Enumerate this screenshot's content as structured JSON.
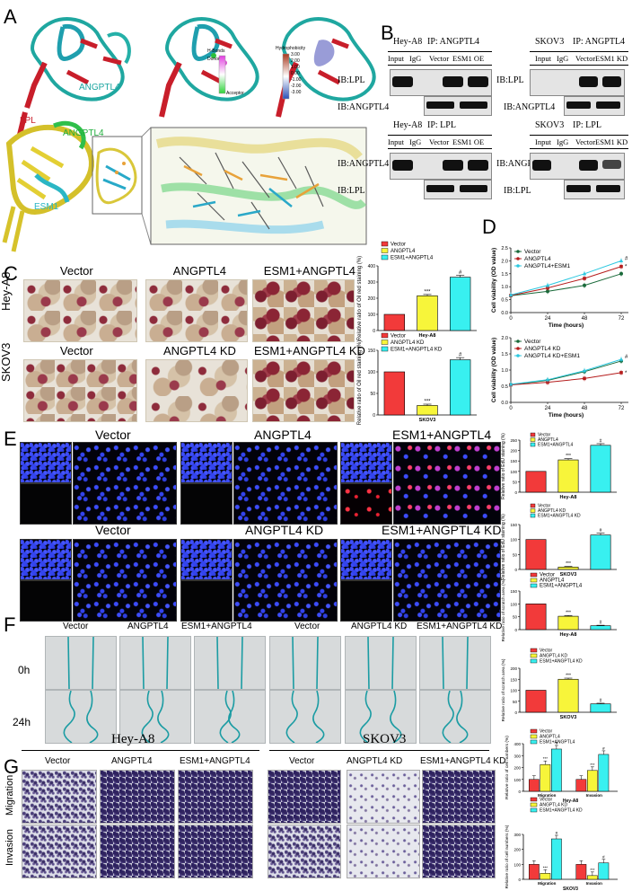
{
  "panel_labels": [
    "A",
    "B",
    "C",
    "D",
    "E",
    "F",
    "G"
  ],
  "panelA": {
    "lpl": "LPL",
    "angptl4": "ANGPTL4",
    "angptl4_2": "ANGPTL4",
    "esm1": "ESM1",
    "hbonds_title": "H-Bonds",
    "hbonds_donor": "Donor",
    "hbonds_acceptor": "Acceptor",
    "hydro_title": "Hydrophobicity",
    "hydro_ticks": [
      "3.00",
      "2.00",
      "1.00",
      "0.00",
      "-1.00",
      "-2.00",
      "-3.00"
    ]
  },
  "panelB": {
    "blots": [
      {
        "cell": "Hey-A8",
        "ip": "IP: ANGPTL4",
        "cols": [
          "Input",
          "IgG",
          "Vector",
          "ESM1 OE"
        ],
        "ib_top": "IB:LPL",
        "ib_bottom": "IB:ANGPTL4"
      },
      {
        "cell": "SKOV3",
        "ip": "IP: ANGPTL4",
        "cols": [
          "Input",
          "IgG",
          "Vector",
          "ESM1 KD"
        ],
        "ib_top": "IB:LPL",
        "ib_bottom": "IB:ANGPTL4"
      },
      {
        "cell": "Hey-A8",
        "ip": "IP: LPL",
        "cols": [
          "Input",
          "IgG",
          "Vector",
          "ESM1 OE"
        ],
        "ib_top": "IB:ANGPTL4",
        "ib_bottom": "IB:LPL"
      },
      {
        "cell": "SKOV3",
        "ip": "IP: LPL",
        "cols": [
          "Input",
          "IgG",
          "Vector",
          "ESM1 KD"
        ],
        "ib_top": "IB:ANGPTL4",
        "ib_bottom": "IB:LPL"
      }
    ]
  },
  "panelC": {
    "top_titles": [
      "Vector",
      "ANGPTL4",
      "ESM1+ANGPTL4"
    ],
    "bottom_titles": [
      "Vector",
      "ANGPTL4 KD",
      "ESM1+ANGPTL4 KD"
    ],
    "row_labels": [
      "Hey-A8",
      "SKOV3"
    ]
  },
  "panelE": {
    "top_titles": [
      "Vector",
      "ANGPTL4",
      "ESM1+ANGPTL4"
    ],
    "bottom_titles": [
      "Vector",
      "ANGPTL4 KD",
      "ESM1+ANGPTL4 KD"
    ]
  },
  "panelF": {
    "titles": [
      "Vector",
      "ANGPTL4",
      "ESM1+ANGPTL4",
      "Vector",
      "ANGPTL4 KD",
      "ESM1+ANGPTL4 KD"
    ],
    "row_labels": [
      "0h",
      "24h"
    ]
  },
  "panelG": {
    "group_left": "Hey-A8",
    "group_right": "SKOV3",
    "titles": [
      "Vector",
      "ANGPTL4",
      "ESM1+ANGPTL4",
      "Vector",
      "ANGPTL4 KD",
      "ESM1+ANGPTL4 KD"
    ],
    "row_labels": [
      "Migration",
      "Invasion"
    ]
  },
  "colors": {
    "red": "#f23a3a",
    "yellow": "#f7f53a",
    "cyan": "#38f0f0",
    "line_dark": "#1a6a3a",
    "line_red": "#b51c1c",
    "line_cyan": "#2cc8e0"
  },
  "chart_data": [
    {
      "id": "c_hey",
      "type": "bar",
      "title": "",
      "xlabel": "Hey-A8",
      "ylabel": "Relative ratio of Oil red staining (%)",
      "ylim": [
        0,
        400
      ],
      "yticks": [
        0,
        100,
        200,
        300,
        400
      ],
      "legend": [
        "Vector",
        "ANGPTL4",
        "ESM1+ANGPTL4"
      ],
      "values": [
        100,
        215,
        330
      ],
      "errors": [
        0,
        8,
        12
      ],
      "sig": [
        "",
        "***",
        "#"
      ]
    },
    {
      "id": "c_skov",
      "type": "bar",
      "title": "",
      "xlabel": "SKOV3",
      "ylabel": "Relative ratio of Oil red staining (%)",
      "ylim": [
        0,
        150
      ],
      "yticks": [
        0,
        50,
        100,
        150
      ],
      "legend": [
        "Vector",
        "ANGPTL4 KD",
        "ESM1+ANGPTL4 KD"
      ],
      "values": [
        100,
        22,
        128
      ],
      "errors": [
        0,
        3,
        5
      ],
      "sig": [
        "",
        "***",
        "#"
      ]
    },
    {
      "id": "d_hey",
      "type": "line",
      "xlabel": "Time (hours)",
      "ylabel": "Cell viability (OD value)",
      "ylim": [
        0,
        2.5
      ],
      "yticks": [
        0.0,
        0.5,
        1.0,
        1.5,
        2.0,
        2.5
      ],
      "x": [
        0,
        24,
        48,
        72
      ],
      "series": [
        {
          "name": "Vector",
          "values": [
            0.65,
            0.82,
            1.05,
            1.5
          ]
        },
        {
          "name": "ANGPTL4",
          "values": [
            0.66,
            0.95,
            1.32,
            1.78
          ]
        },
        {
          "name": "ANGPTL4+ESM1",
          "values": [
            0.68,
            1.05,
            1.5,
            2.0
          ]
        }
      ],
      "sig": [
        "*",
        "#"
      ]
    },
    {
      "id": "d_skov",
      "type": "line",
      "xlabel": "Time (hours)",
      "ylabel": "Cell viability (OD value)",
      "ylim": [
        0,
        2.0
      ],
      "yticks": [
        0.0,
        0.5,
        1.0,
        1.5,
        2.0
      ],
      "x": [
        0,
        24,
        48,
        72
      ],
      "series": [
        {
          "name": "Vector",
          "values": [
            0.55,
            0.68,
            0.95,
            1.28
          ]
        },
        {
          "name": "ANGPTL4 KD",
          "values": [
            0.54,
            0.62,
            0.74,
            0.92
          ]
        },
        {
          "name": "ANGPTL4 KD+ESM1",
          "values": [
            0.56,
            0.7,
            0.98,
            1.33
          ]
        }
      ],
      "sig": [
        "*",
        "#"
      ]
    },
    {
      "id": "e_hey",
      "type": "bar",
      "xlabel": "Hey-A8",
      "ylabel": "Relative ratio of EdU staining (%)",
      "ylim": [
        0,
        250
      ],
      "yticks": [
        0,
        50,
        100,
        150,
        200,
        250
      ],
      "legend": [
        "Vector",
        "ANGPTL4",
        "ESM1+ANGPTL4"
      ],
      "values": [
        100,
        155,
        225
      ],
      "errors": [
        0,
        6,
        8
      ],
      "sig": [
        "",
        "***",
        "#"
      ]
    },
    {
      "id": "e_skov",
      "type": "bar",
      "xlabel": "SKOV3",
      "ylabel": "Relative ratio of EdU staining (%)",
      "ylim": [
        0,
        150
      ],
      "yticks": [
        0,
        50,
        100,
        150
      ],
      "legend": [
        "Vector",
        "ANGPTL4 KD",
        "ESM1+ANGPTL4 KD"
      ],
      "values": [
        100,
        8,
        115
      ],
      "errors": [
        0,
        2,
        6
      ],
      "sig": [
        "",
        "***",
        "#"
      ]
    },
    {
      "id": "f_hey",
      "type": "bar",
      "xlabel": "Hey-A8",
      "ylabel": "Relative ratio of scratch area (%)",
      "ylim": [
        0,
        150
      ],
      "yticks": [
        0,
        50,
        100,
        150
      ],
      "legend": [
        "Vector",
        "ANGPTL4",
        "ESM1+ANGPTL4"
      ],
      "values": [
        100,
        52,
        15
      ],
      "errors": [
        0,
        3,
        2
      ],
      "sig": [
        "",
        "***",
        "#"
      ]
    },
    {
      "id": "f_skov",
      "type": "bar",
      "xlabel": "SKOV3",
      "ylabel": "Relative ratio of scratch area (%)",
      "ylim": [
        0,
        200
      ],
      "yticks": [
        0,
        50,
        100,
        150,
        200
      ],
      "legend": [
        "Vector",
        "ANGPTL4 KD",
        "ESM1+ANGPTL4 KD"
      ],
      "values": [
        100,
        150,
        38
      ],
      "errors": [
        0,
        5,
        3
      ],
      "sig": [
        "",
        "***",
        "#"
      ]
    },
    {
      "id": "g_hey",
      "type": "bar",
      "xlabel": "Hey-A8",
      "ylabel": "Relative ratio of cell numbers (%)",
      "ylim": [
        0,
        400
      ],
      "yticks": [
        0,
        100,
        200,
        300,
        400
      ],
      "categories": [
        "Migration",
        "Invasion"
      ],
      "legend": [
        "Vector",
        "ANGPTL4",
        "ESM1+ANGPTL4"
      ],
      "series": [
        {
          "name": "Vector",
          "values": [
            100,
            100
          ]
        },
        {
          "name": "ANGPTL4",
          "values": [
            225,
            175
          ]
        },
        {
          "name": "ESM1+ANGPTL4",
          "values": [
            355,
            310
          ]
        }
      ],
      "sig": [
        [
          "",
          "***",
          "#"
        ],
        [
          "",
          "***",
          "#"
        ]
      ]
    },
    {
      "id": "g_skov",
      "type": "bar",
      "xlabel": "SKOV3",
      "ylabel": "Relative ratio of cell numbers (%)",
      "ylim": [
        0,
        300
      ],
      "yticks": [
        0,
        100,
        200,
        300
      ],
      "categories": [
        "Migration",
        "Invasion"
      ],
      "legend": [
        "Vector",
        "ANGPTL4 KD",
        "ESM1+ANGPTL4 KD"
      ],
      "series": [
        {
          "name": "Vector",
          "values": [
            100,
            100
          ]
        },
        {
          "name": "ANGPTL4 KD",
          "values": [
            40,
            25
          ]
        },
        {
          "name": "ESM1+ANGPTL4 KD",
          "values": [
            270,
            110
          ]
        }
      ],
      "sig": [
        [
          "",
          "***",
          "#"
        ],
        [
          "",
          "***",
          "#"
        ]
      ]
    }
  ]
}
